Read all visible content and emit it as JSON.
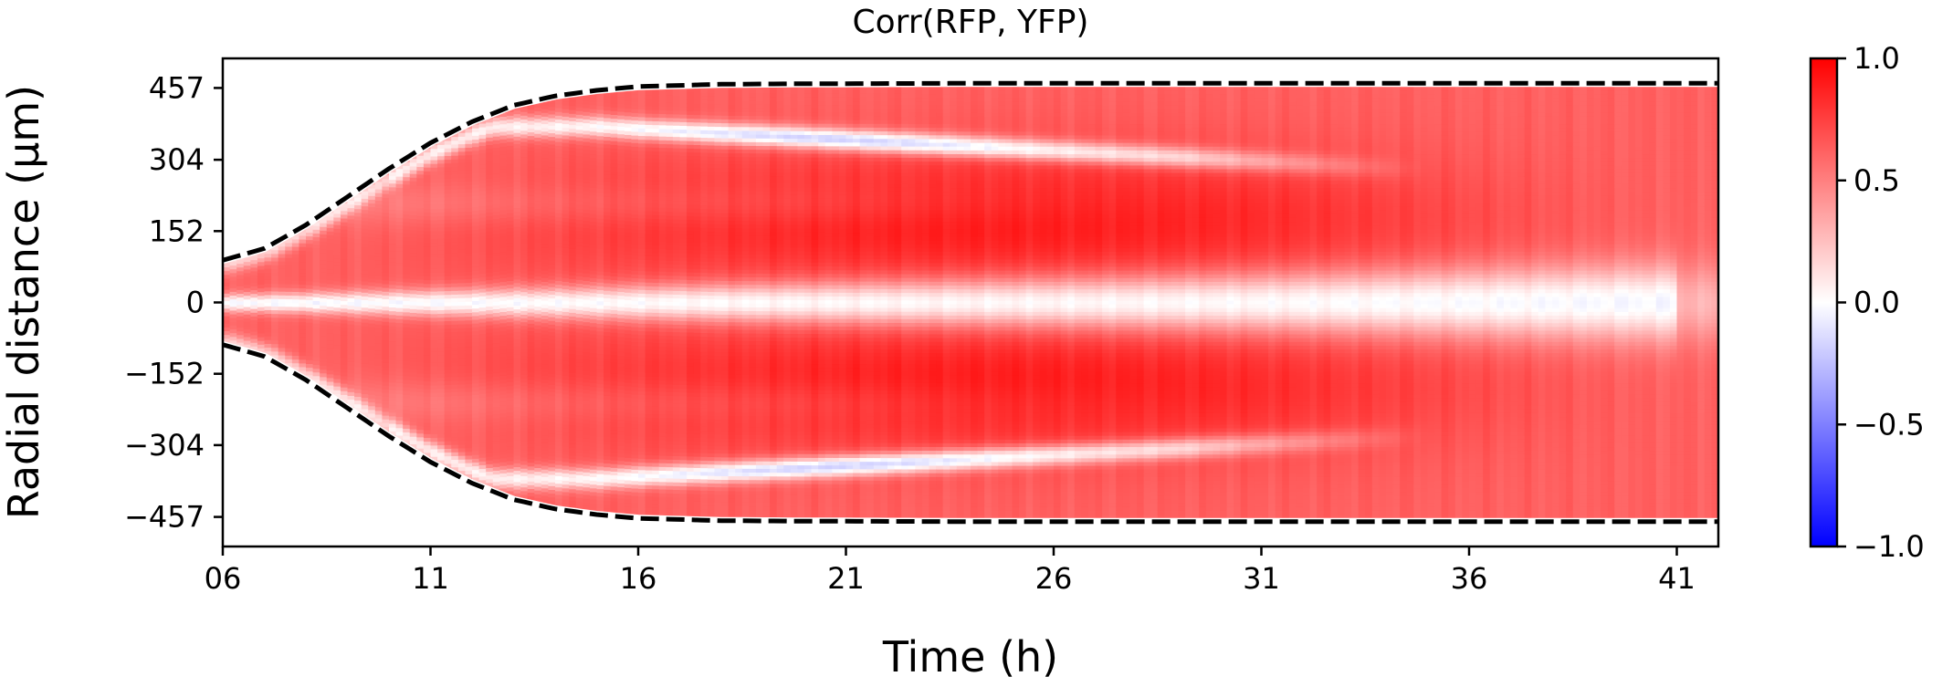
{
  "chart_data": {
    "type": "heatmap",
    "title": "Corr(RFP, YFP)",
    "xlabel": "Time (h)",
    "ylabel": "Radial distance (μm)",
    "xlim": [
      6,
      42
    ],
    "ylim": [
      -520,
      520
    ],
    "x_ticks": [
      6,
      11,
      16,
      21,
      26,
      31,
      36,
      41
    ],
    "x_tick_labels": [
      "06",
      "11",
      "16",
      "21",
      "26",
      "31",
      "36",
      "41"
    ],
    "y_ticks": [
      457,
      304,
      152,
      0,
      -152,
      -304,
      -457
    ],
    "y_tick_labels": [
      "457",
      "304",
      "152",
      "0",
      "−152",
      "−304",
      "−457"
    ],
    "colorbar": {
      "colormap": "bwr",
      "range": [
        -1.0,
        1.0
      ],
      "ticks": [
        1.0,
        0.5,
        0.0,
        -0.5,
        -1.0
      ],
      "tick_labels": [
        "1.0",
        "0.5",
        "0.0",
        "−0.5",
        "−1.0"
      ],
      "low_color": "#0000ff",
      "mid_color": "#ffffff",
      "high_color": "#ff0000"
    },
    "colony_boundary": {
      "style": "black dashed line",
      "time_h": [
        6,
        7,
        8,
        9,
        10,
        11,
        12,
        13,
        14,
        15,
        16,
        18,
        20,
        24,
        28,
        32,
        36,
        40,
        42
      ],
      "radius_um": [
        90,
        115,
        165,
        225,
        285,
        340,
        385,
        420,
        440,
        452,
        460,
        465,
        466,
        467,
        467,
        467,
        467,
        467,
        467
      ]
    }
  }
}
